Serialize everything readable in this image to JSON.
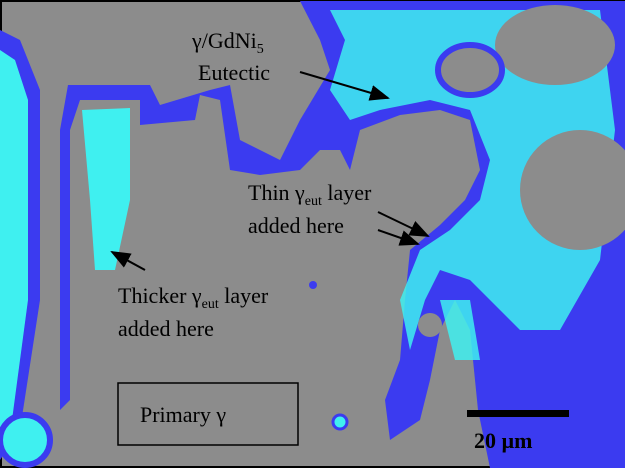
{
  "labels": {
    "eutectic": {
      "line1": "γ/GdNi",
      "line1_sub": "5",
      "line2": "Eutectic"
    },
    "thin": {
      "line1_pre": "Thin γ",
      "line1_sub": "eut",
      "line1_post": " layer",
      "line2": "added here"
    },
    "thicker": {
      "line1_pre": "Thicker γ",
      "line1_sub": "eut",
      "line1_post": " layer",
      "line2": "added here"
    },
    "primary": "Primary γ",
    "scale_bar": "20 µm"
  }
}
